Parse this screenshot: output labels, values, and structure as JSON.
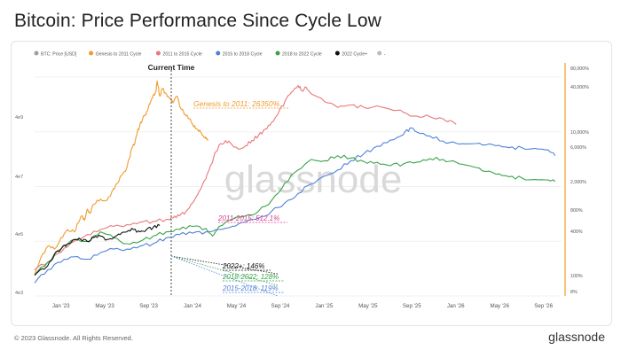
{
  "title": "Bitcoin: Price Performance Since Cycle Low",
  "watermark": "glassnode",
  "footer": {
    "copyright": "© 2023 Glassnode. All Rights Reserved.",
    "brand": "glassnode"
  },
  "current_time_label": "Current Time",
  "colors": {
    "genesis": "#f09a2c",
    "c2011": "#e8787a",
    "c2015": "#4f82d6",
    "c2018": "#3aa34a",
    "c2022": "#111111",
    "price": "#9aa0aa",
    "axis_right": "#f6b25a"
  },
  "chart_data": {
    "type": "line",
    "x_ticks": [
      "Jan '23",
      "May '23",
      "Sep '23",
      "Jan '24",
      "May '24",
      "Sep '24",
      "Jan '25",
      "May '25",
      "Sep '25",
      "Jan '26",
      "May '26",
      "Sep '26"
    ],
    "y_left_ticks": [
      "4e3",
      "4e5",
      "4e7",
      "4e9"
    ],
    "y_right_ticks": [
      "80,000%",
      "40,000%",
      "10,000%",
      "6,000%",
      "2,000%",
      "800%",
      "400%",
      "100%",
      "8%"
    ],
    "legend": [
      {
        "label": "BTC: Price [USD]",
        "color": "#9aa0aa"
      },
      {
        "label": "Genesis to 2011 Cycle",
        "color": "#f09a2c"
      },
      {
        "label": "2011 to 2015 Cycle",
        "color": "#e8787a"
      },
      {
        "label": "2015 to 2018 Cycle",
        "color": "#4f82d6"
      },
      {
        "label": "2018 to 2022 Cycle",
        "color": "#3aa34a"
      },
      {
        "label": "2022 Cycle+",
        "color": "#111111"
      },
      {
        "label": "-",
        "color": "#bbbbbb"
      }
    ],
    "annotations": [
      {
        "text": "Genesis to 2011: 26350%",
        "color": "#f09a2c"
      },
      {
        "text": "2011-2015: 512.1%",
        "color": "#d63c8a"
      },
      {
        "text": "2022+: 146%",
        "color": "#111111"
      },
      {
        "text": "2018-2022: 128%",
        "color": "#3aa34a"
      },
      {
        "text": "2015-2018: 119%",
        "color": "#4f82d6"
      }
    ],
    "x_range": [
      "2022-11",
      "2026-11"
    ],
    "current_time": "2023-11",
    "series": [
      {
        "name": "Genesis to 2011 Cycle",
        "color": "#f09a2c",
        "points": [
          [
            0.0,
            3
          ],
          [
            0.05,
            8
          ],
          [
            0.1,
            14
          ],
          [
            0.15,
            12
          ],
          [
            0.2,
            22
          ],
          [
            0.25,
            34
          ],
          [
            0.3,
            30
          ],
          [
            0.33,
            48
          ],
          [
            0.36,
            70
          ],
          [
            0.38,
            55
          ],
          [
            0.4,
            100
          ],
          [
            0.42,
            80
          ],
          [
            0.45,
            130
          ],
          [
            0.5,
            170
          ],
          [
            0.55,
            160
          ],
          [
            0.6,
            300
          ],
          [
            0.62,
            380
          ],
          [
            0.66,
            600
          ],
          [
            0.7,
            900
          ],
          [
            0.72,
            1500
          ],
          [
            0.74,
            2600
          ],
          [
            0.76,
            3200
          ],
          [
            0.78,
            6000
          ],
          [
            0.8,
            9000
          ],
          [
            0.82,
            12000
          ],
          [
            0.84,
            15000
          ],
          [
            0.86,
            20000
          ],
          [
            0.88,
            30000
          ],
          [
            0.9,
            42000
          ],
          [
            0.92,
            50000
          ],
          [
            0.93,
            90000
          ],
          [
            0.95,
            40000
          ],
          [
            0.97,
            60000
          ],
          [
            1.0,
            45000
          ],
          [
            1.03,
            36000
          ],
          [
            1.05,
            28000
          ],
          [
            1.08,
            40000
          ],
          [
            1.1,
            24000
          ],
          [
            1.13,
            18000
          ],
          [
            1.15,
            14000
          ],
          [
            1.18,
            12000
          ],
          [
            1.2,
            9000
          ],
          [
            1.23,
            7000
          ],
          [
            1.26,
            6000
          ],
          [
            1.28,
            4800
          ],
          [
            1.3,
            4200
          ],
          [
            1.32,
            3900
          ]
        ]
      },
      {
        "name": "2011 to 2015 Cycle",
        "color": "#e8787a",
        "points": [
          [
            0.0,
            4
          ],
          [
            0.1,
            6
          ],
          [
            0.2,
            10
          ],
          [
            0.3,
            18
          ],
          [
            0.4,
            26
          ],
          [
            0.5,
            34
          ],
          [
            0.6,
            40
          ],
          [
            0.7,
            44
          ],
          [
            0.8,
            50
          ],
          [
            0.9,
            52
          ],
          [
            1.0,
            58
          ],
          [
            1.05,
            62
          ],
          [
            1.1,
            70
          ],
          [
            1.15,
            90
          ],
          [
            1.2,
            140
          ],
          [
            1.25,
            260
          ],
          [
            1.3,
            500
          ],
          [
            1.33,
            900
          ],
          [
            1.36,
            1600
          ],
          [
            1.4,
            3000
          ],
          [
            1.45,
            3800
          ],
          [
            1.5,
            3000
          ],
          [
            1.55,
            2400
          ],
          [
            1.6,
            2900
          ],
          [
            1.65,
            3800
          ],
          [
            1.7,
            5000
          ],
          [
            1.75,
            7000
          ],
          [
            1.8,
            10000
          ],
          [
            1.85,
            16000
          ],
          [
            1.9,
            30000
          ],
          [
            1.95,
            50000
          ],
          [
            2.0,
            70000
          ],
          [
            2.03,
            54000
          ],
          [
            2.06,
            65000
          ],
          [
            2.1,
            45000
          ],
          [
            2.2,
            30000
          ],
          [
            2.3,
            22000
          ],
          [
            2.4,
            25000
          ],
          [
            2.5,
            22000
          ],
          [
            2.6,
            24000
          ],
          [
            2.7,
            20000
          ],
          [
            2.8,
            17000
          ],
          [
            2.9,
            14000
          ],
          [
            3.0,
            13500
          ],
          [
            3.1,
            12000
          ],
          [
            3.15,
            11000
          ],
          [
            3.2,
            9000
          ]
        ]
      },
      {
        "name": "2015 to 2018 Cycle",
        "color": "#4f82d6",
        "points": [
          [
            0.0,
            2
          ],
          [
            0.1,
            4
          ],
          [
            0.2,
            6
          ],
          [
            0.3,
            8
          ],
          [
            0.4,
            7
          ],
          [
            0.5,
            10
          ],
          [
            0.6,
            12
          ],
          [
            0.7,
            12
          ],
          [
            0.8,
            14
          ],
          [
            0.9,
            16
          ],
          [
            1.0,
            22
          ],
          [
            1.1,
            26
          ],
          [
            1.2,
            28
          ],
          [
            1.3,
            30
          ],
          [
            1.4,
            34
          ],
          [
            1.5,
            40
          ],
          [
            1.6,
            50
          ],
          [
            1.7,
            62
          ],
          [
            1.8,
            90
          ],
          [
            1.9,
            140
          ],
          [
            2.0,
            230
          ],
          [
            2.1,
            380
          ],
          [
            2.2,
            580
          ],
          [
            2.3,
            800
          ],
          [
            2.4,
            1300
          ],
          [
            2.5,
            1900
          ],
          [
            2.6,
            2800
          ],
          [
            2.7,
            3900
          ],
          [
            2.8,
            5200
          ],
          [
            2.85,
            7400
          ],
          [
            2.9,
            6000
          ],
          [
            3.0,
            4800
          ],
          [
            3.1,
            3700
          ],
          [
            3.2,
            3300
          ],
          [
            3.3,
            3200
          ],
          [
            3.4,
            3000
          ],
          [
            3.5,
            2900
          ],
          [
            3.6,
            2600
          ],
          [
            3.7,
            2600
          ],
          [
            3.8,
            2500
          ],
          [
            3.9,
            2300
          ],
          [
            3.95,
            1700
          ]
        ]
      },
      {
        "name": "2018 to 2022 Cycle",
        "color": "#3aa34a",
        "points": [
          [
            0.0,
            3
          ],
          [
            0.1,
            6
          ],
          [
            0.2,
            12
          ],
          [
            0.3,
            20
          ],
          [
            0.4,
            18
          ],
          [
            0.5,
            30
          ],
          [
            0.6,
            22
          ],
          [
            0.7,
            16
          ],
          [
            0.8,
            18
          ],
          [
            0.9,
            24
          ],
          [
            1.0,
            30
          ],
          [
            1.1,
            34
          ],
          [
            1.2,
            40
          ],
          [
            1.3,
            36
          ],
          [
            1.35,
            24
          ],
          [
            1.4,
            40
          ],
          [
            1.5,
            58
          ],
          [
            1.6,
            70
          ],
          [
            1.7,
            90
          ],
          [
            1.8,
            160
          ],
          [
            1.9,
            400
          ],
          [
            2.0,
            800
          ],
          [
            2.1,
            1400
          ],
          [
            2.2,
            1300
          ],
          [
            2.3,
            1700
          ],
          [
            2.4,
            1500
          ],
          [
            2.5,
            1250
          ],
          [
            2.6,
            1200
          ],
          [
            2.7,
            1000
          ],
          [
            2.8,
            1100
          ],
          [
            2.9,
            1200
          ],
          [
            3.0,
            1450
          ],
          [
            3.1,
            1400
          ],
          [
            3.2,
            1200
          ],
          [
            3.3,
            1000
          ],
          [
            3.4,
            760
          ],
          [
            3.5,
            640
          ],
          [
            3.6,
            560
          ],
          [
            3.7,
            520
          ],
          [
            3.8,
            480
          ],
          [
            3.9,
            470
          ],
          [
            3.95,
            430
          ]
        ]
      },
      {
        "name": "2022 Cycle+",
        "color": "#111111",
        "points": [
          [
            0.0,
            3
          ],
          [
            0.1,
            5
          ],
          [
            0.15,
            9
          ],
          [
            0.2,
            12
          ],
          [
            0.25,
            16
          ],
          [
            0.3,
            20
          ],
          [
            0.35,
            20
          ],
          [
            0.4,
            18
          ],
          [
            0.45,
            22
          ],
          [
            0.5,
            24
          ],
          [
            0.55,
            20
          ],
          [
            0.6,
            22
          ],
          [
            0.65,
            26
          ],
          [
            0.7,
            30
          ],
          [
            0.75,
            34
          ],
          [
            0.8,
            30
          ],
          [
            0.85,
            34
          ],
          [
            0.9,
            38
          ],
          [
            0.95,
            42
          ]
        ]
      }
    ]
  }
}
